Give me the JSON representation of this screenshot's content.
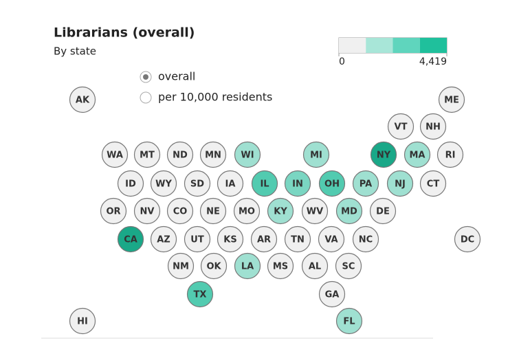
{
  "header": {
    "title": "Librarians (overall)",
    "subtitle": "By state"
  },
  "legend": {
    "colors": [
      "#f0f0f0",
      "#a8e6d8",
      "#5fd5bd",
      "#1fc09c"
    ],
    "ticks": [
      0,
      {
        "value": 4419,
        "label": "4,419"
      }
    ]
  },
  "options": [
    "overall",
    "per 10,000 residents"
  ],
  "selected": 0,
  "states": [
    {
      "label": "AK",
      "color": "#f0f0f0"
    },
    {
      "label": "ME",
      "color": "#f0f0f0"
    },
    {
      "label": "VT",
      "color": "#f0f0f0"
    },
    {
      "label": "NH",
      "color": "#f0f0f0"
    },
    {
      "label": "WA",
      "color": "#f0f0f0"
    },
    {
      "label": "MT",
      "color": "#f0f0f0"
    },
    {
      "label": "ND",
      "color": "#f0f0f0"
    },
    {
      "label": "MN",
      "color": "#f0f0f0"
    },
    {
      "label": "WI",
      "color": "#9fe0d1"
    },
    {
      "label": "MI",
      "color": "#9fe0d1"
    },
    {
      "label": "NY",
      "color": "#1aa888"
    },
    {
      "label": "MA",
      "color": "#9fe0d1"
    },
    {
      "label": "RI",
      "color": "#f0f0f0"
    },
    {
      "label": "ID",
      "color": "#f0f0f0"
    },
    {
      "label": "WY",
      "color": "#f0f0f0"
    },
    {
      "label": "SD",
      "color": "#f0f0f0"
    },
    {
      "label": "IA",
      "color": "#f0f0f0"
    },
    {
      "label": "IL",
      "color": "#52cbb0"
    },
    {
      "label": "IN",
      "color": "#7ad6c2"
    },
    {
      "label": "OH",
      "color": "#52cbb0"
    },
    {
      "label": "PA",
      "color": "#9fe0d1"
    },
    {
      "label": "NJ",
      "color": "#9fe0d1"
    },
    {
      "label": "CT",
      "color": "#f0f0f0"
    },
    {
      "label": "OR",
      "color": "#f0f0f0"
    },
    {
      "label": "NV",
      "color": "#f0f0f0"
    },
    {
      "label": "CO",
      "color": "#f0f0f0"
    },
    {
      "label": "NE",
      "color": "#f0f0f0"
    },
    {
      "label": "MO",
      "color": "#f0f0f0"
    },
    {
      "label": "KY",
      "color": "#9fe0d1"
    },
    {
      "label": "WV",
      "color": "#f0f0f0"
    },
    {
      "label": "MD",
      "color": "#9fe0d1"
    },
    {
      "label": "DE",
      "color": "#f0f0f0"
    },
    {
      "label": "CA",
      "color": "#1aa888"
    },
    {
      "label": "AZ",
      "color": "#f0f0f0"
    },
    {
      "label": "UT",
      "color": "#f0f0f0"
    },
    {
      "label": "KS",
      "color": "#f0f0f0"
    },
    {
      "label": "AR",
      "color": "#f0f0f0"
    },
    {
      "label": "TN",
      "color": "#f0f0f0"
    },
    {
      "label": "VA",
      "color": "#f0f0f0"
    },
    {
      "label": "NC",
      "color": "#f0f0f0"
    },
    {
      "label": "DC",
      "color": "#f0f0f0"
    },
    {
      "label": "NM",
      "color": "#f0f0f0"
    },
    {
      "label": "OK",
      "color": "#f0f0f0"
    },
    {
      "label": "LA",
      "color": "#9fe0d1"
    },
    {
      "label": "MS",
      "color": "#f0f0f0"
    },
    {
      "label": "AL",
      "color": "#f0f0f0"
    },
    {
      "label": "SC",
      "color": "#f0f0f0"
    },
    {
      "label": "TX",
      "color": "#52cbb0"
    },
    {
      "label": "GA",
      "color": "#f0f0f0"
    },
    {
      "label": "HI",
      "color": "#f0f0f0"
    },
    {
      "label": "FL",
      "color": "#9fe0d1"
    }
  ]
}
